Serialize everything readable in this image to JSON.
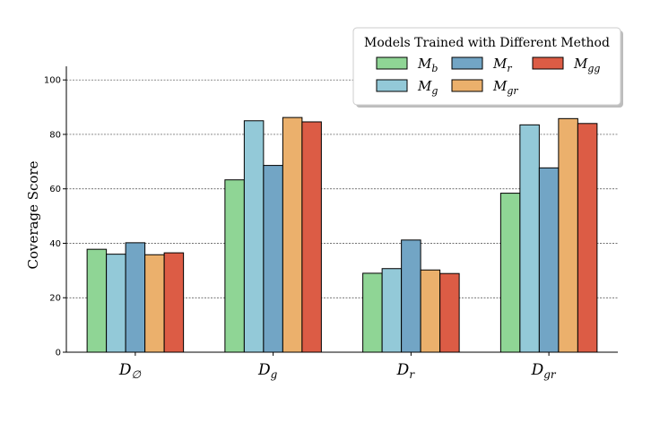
{
  "chart_data": {
    "type": "bar",
    "title": "",
    "xlabel": "",
    "ylabel": "Coverage Score",
    "ylim": [
      0,
      105
    ],
    "yticks": [
      0,
      20,
      40,
      60,
      80,
      100
    ],
    "grid": "horizontal-dashed",
    "categories": [
      {
        "base": "D",
        "sub": "∅"
      },
      {
        "base": "D",
        "sub": "g"
      },
      {
        "base": "D",
        "sub": "r"
      },
      {
        "base": "D",
        "sub": "gr"
      }
    ],
    "legend": {
      "title": "Models Trained with Different Method",
      "placement": "top-right"
    },
    "series": [
      {
        "name": "M_b",
        "base": "M",
        "sub": "b",
        "color": "#8fd595",
        "values": [
          37.8,
          63.3,
          29.0,
          58.4
        ]
      },
      {
        "name": "M_g",
        "base": "M",
        "sub": "g",
        "color": "#93c9d8",
        "values": [
          36.0,
          85.0,
          30.7,
          83.5
        ]
      },
      {
        "name": "M_r",
        "base": "M",
        "sub": "r",
        "color": "#72a5c5",
        "values": [
          40.2,
          68.6,
          41.2,
          67.7
        ]
      },
      {
        "name": "M_gr",
        "base": "M",
        "sub": "gr",
        "color": "#ebb06c",
        "values": [
          35.8,
          86.2,
          30.2,
          85.8
        ]
      },
      {
        "name": "M_gg",
        "base": "M",
        "sub": "gg",
        "color": "#dc5c45",
        "values": [
          36.5,
          84.6,
          28.9,
          84.0
        ]
      }
    ]
  }
}
